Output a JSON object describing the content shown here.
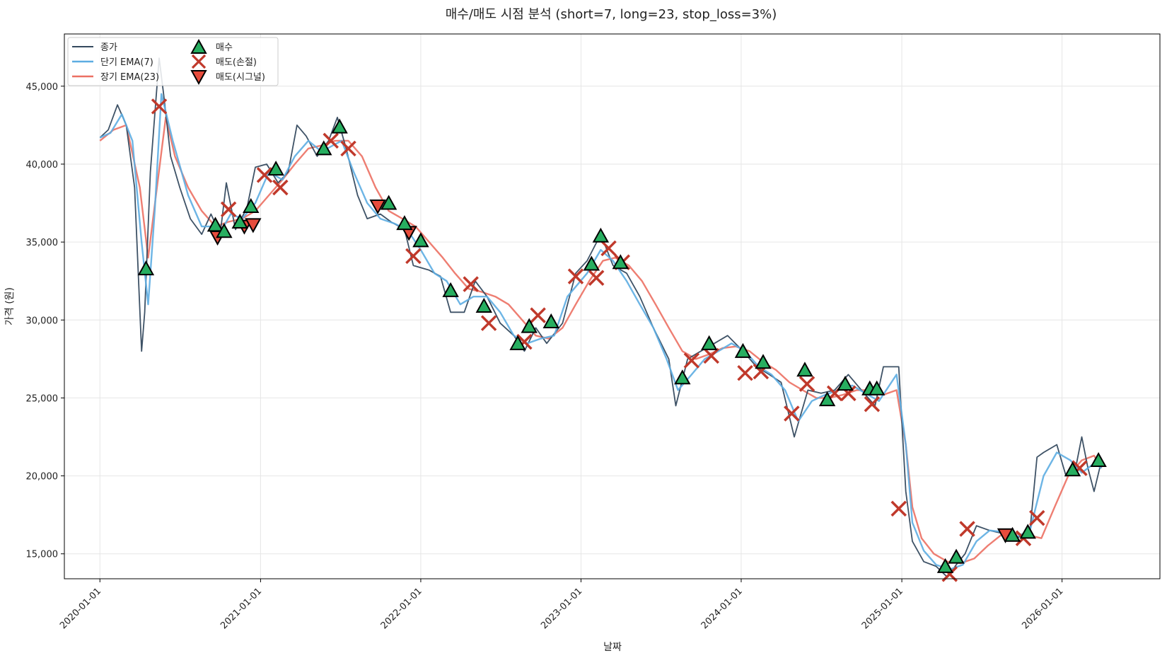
{
  "chart_data": {
    "type": "line",
    "title": "매수/매도 시점 분석 (short=7, long=23, stop_loss=3%)",
    "xlabel": "날짜",
    "ylabel": "가격 (원)",
    "xlim": [
      "2019-10-12",
      "2026-08-12"
    ],
    "ylim": [
      13400,
      48350
    ],
    "x_ticks": [
      "2020-01-01",
      "2021-01-01",
      "2022-01-01",
      "2023-01-01",
      "2024-01-01",
      "2025-01-01",
      "2026-01-01"
    ],
    "y_ticks": [
      15000,
      20000,
      25000,
      30000,
      35000,
      40000,
      45000
    ],
    "y_tick_labels": [
      "15,000",
      "20,000",
      "25,000",
      "30,000",
      "35,000",
      "40,000",
      "45,000"
    ],
    "grid": true,
    "legend_position": "top-left",
    "legend": {
      "close": "종가",
      "ema_short": "단기 EMA(7)",
      "ema_long": "장기 EMA(23)",
      "buy": "매수",
      "sell_stop": "매도(손절)",
      "sell_signal": "매도(시그널)"
    },
    "colors": {
      "close": "#34495e",
      "ema_short": "#5dade2",
      "ema_long": "#ec7063",
      "buy": "#27ae60",
      "sell_stop": "#c0392b",
      "sell_signal": "#e74c3c"
    },
    "series": [
      {
        "key": "close",
        "name": "종가",
        "x": [
          "2020-01-01",
          "2020-01-20",
          "2020-02-10",
          "2020-03-01",
          "2020-03-20",
          "2020-04-05",
          "2020-04-12",
          "2020-04-25",
          "2020-05-15",
          "2020-05-25",
          "2020-06-10",
          "2020-07-01",
          "2020-07-25",
          "2020-08-20",
          "2020-09-10",
          "2020-10-01",
          "2020-10-15",
          "2020-11-05",
          "2020-12-01",
          "2020-12-20",
          "2021-01-15",
          "2021-02-10",
          "2021-03-05",
          "2021-03-25",
          "2021-04-15",
          "2021-05-10",
          "2021-06-05",
          "2021-06-25",
          "2021-07-15",
          "2021-08-10",
          "2021-09-01",
          "2021-10-01",
          "2021-10-25",
          "2021-11-25",
          "2021-12-15",
          "2022-01-20",
          "2022-02-15",
          "2022-03-10",
          "2022-04-10",
          "2022-05-05",
          "2022-06-01",
          "2022-07-01",
          "2022-08-01",
          "2022-08-25",
          "2022-09-20",
          "2022-10-15",
          "2022-11-20",
          "2022-12-20",
          "2023-01-15",
          "2023-02-15",
          "2023-03-15",
          "2023-04-15",
          "2023-05-15",
          "2023-06-15",
          "2023-07-20",
          "2023-08-05",
          "2023-09-01",
          "2023-10-01",
          "2023-11-01",
          "2023-12-01",
          "2024-01-05",
          "2024-02-05",
          "2024-03-05",
          "2024-04-01",
          "2024-05-01",
          "2024-06-01",
          "2024-07-01",
          "2024-08-01",
          "2024-09-01",
          "2024-10-01",
          "2024-11-01",
          "2024-11-20",
          "2024-12-25",
          "2025-01-10",
          "2025-01-25",
          "2025-02-20",
          "2025-03-20",
          "2025-04-15",
          "2025-05-05",
          "2025-05-25",
          "2025-06-20",
          "2025-07-20",
          "2025-08-20",
          "2025-09-20",
          "2025-10-20",
          "2025-11-05",
          "2025-11-20",
          "2025-12-20",
          "2026-01-10",
          "2026-02-01",
          "2026-02-15",
          "2026-03-01",
          "2026-03-15",
          "2026-04-01"
        ],
        "values": [
          41700,
          42200,
          43800,
          42500,
          38500,
          28000,
          30500,
          39500,
          46800,
          44500,
          40500,
          38500,
          36500,
          35500,
          36800,
          35500,
          38800,
          35800,
          37200,
          39800,
          40000,
          38800,
          39500,
          42500,
          41800,
          40500,
          41500,
          43000,
          41000,
          38000,
          36500,
          36800,
          36300,
          35800,
          33500,
          33200,
          32800,
          30500,
          30500,
          32500,
          31500,
          29800,
          29000,
          28000,
          29500,
          28500,
          29800,
          33000,
          33800,
          35500,
          33500,
          33000,
          31500,
          29500,
          27500,
          24500,
          27500,
          28000,
          28500,
          29000,
          28000,
          27000,
          26500,
          26000,
          22500,
          25500,
          25300,
          25500,
          26500,
          25500,
          24500,
          27000,
          27000,
          19000,
          15800,
          14500,
          14200,
          13500,
          14300,
          15000,
          16800,
          16500,
          16300,
          16000,
          16500,
          21200,
          21500,
          22000,
          20000,
          20500,
          22500,
          20500,
          19000,
          21000
        ]
      },
      {
        "key": "ema_short",
        "name": "단기 EMA(7)",
        "x": [
          "2020-01-01",
          "2020-01-25",
          "2020-02-20",
          "2020-03-15",
          "2020-04-05",
          "2020-04-20",
          "2020-05-05",
          "2020-05-20",
          "2020-06-15",
          "2020-07-20",
          "2020-08-20",
          "2020-09-15",
          "2020-10-05",
          "2020-10-25",
          "2020-11-20",
          "2020-12-20",
          "2021-01-20",
          "2021-02-20",
          "2021-03-20",
          "2021-04-20",
          "2021-05-20",
          "2021-06-15",
          "2021-07-05",
          "2021-08-01",
          "2021-09-01",
          "2021-10-01",
          "2021-11-01",
          "2021-12-01",
          "2022-01-01",
          "2022-02-01",
          "2022-03-01",
          "2022-04-01",
          "2022-05-01",
          "2022-06-01",
          "2022-07-01",
          "2022-08-01",
          "2022-09-01",
          "2022-10-01",
          "2022-11-01",
          "2022-12-01",
          "2023-01-15",
          "2023-02-15",
          "2023-03-15",
          "2023-04-15",
          "2023-05-15",
          "2023-06-15",
          "2023-07-15",
          "2023-08-10",
          "2023-09-10",
          "2023-10-10",
          "2023-11-10",
          "2023-12-10",
          "2024-01-10",
          "2024-02-10",
          "2024-03-10",
          "2024-04-10",
          "2024-05-10",
          "2024-06-10",
          "2024-07-10",
          "2024-08-10",
          "2024-09-10",
          "2024-10-10",
          "2024-11-10",
          "2024-12-20",
          "2025-01-10",
          "2025-01-25",
          "2025-02-20",
          "2025-03-20",
          "2025-04-20",
          "2025-05-20",
          "2025-06-20",
          "2025-07-20",
          "2025-08-20",
          "2025-09-20",
          "2025-10-20",
          "2025-11-20",
          "2025-12-20",
          "2026-01-20",
          "2026-02-15",
          "2026-03-15",
          "2026-04-01"
        ],
        "values": [
          41700,
          42000,
          43200,
          41500,
          35000,
          31000,
          37000,
          44500,
          41500,
          38000,
          36000,
          36000,
          35800,
          36800,
          36500,
          37500,
          39500,
          39000,
          40500,
          41500,
          40800,
          41200,
          41500,
          39500,
          37500,
          36500,
          36200,
          35800,
          34500,
          33000,
          32500,
          31000,
          31500,
          31500,
          30500,
          29000,
          28500,
          28800,
          29000,
          31500,
          33000,
          34500,
          33800,
          32500,
          31000,
          29500,
          27500,
          25500,
          26500,
          27500,
          28000,
          28500,
          28000,
          27000,
          26500,
          25500,
          23500,
          24800,
          25200,
          25500,
          25800,
          25300,
          24800,
          26500,
          22000,
          17000,
          15200,
          14300,
          14000,
          14300,
          15800,
          16500,
          16400,
          16100,
          16500,
          20000,
          21500,
          21000,
          20200,
          20800,
          20500
        ]
      },
      {
        "key": "ema_long",
        "name": "장기 EMA(23)",
        "x": [
          "2020-01-01",
          "2020-02-01",
          "2020-03-01",
          "2020-04-01",
          "2020-04-20",
          "2020-05-10",
          "2020-05-30",
          "2020-06-20",
          "2020-07-20",
          "2020-08-20",
          "2020-09-20",
          "2020-10-20",
          "2020-11-20",
          "2020-12-20",
          "2021-01-20",
          "2021-02-20",
          "2021-03-20",
          "2021-04-20",
          "2021-05-20",
          "2021-06-20",
          "2021-07-20",
          "2021-08-20",
          "2021-09-20",
          "2021-10-20",
          "2021-11-20",
          "2021-12-20",
          "2022-01-20",
          "2022-02-20",
          "2022-03-20",
          "2022-04-20",
          "2022-05-20",
          "2022-06-20",
          "2022-07-20",
          "2022-08-20",
          "2022-09-20",
          "2022-10-20",
          "2022-11-20",
          "2022-12-20",
          "2023-01-20",
          "2023-02-20",
          "2023-03-20",
          "2023-04-20",
          "2023-05-20",
          "2023-06-20",
          "2023-07-20",
          "2023-08-20",
          "2023-09-20",
          "2023-10-20",
          "2023-11-20",
          "2023-12-20",
          "2024-01-20",
          "2024-02-20",
          "2024-03-20",
          "2024-04-20",
          "2024-05-20",
          "2024-06-20",
          "2024-07-20",
          "2024-08-20",
          "2024-09-20",
          "2024-10-20",
          "2024-11-20",
          "2024-12-20",
          "2025-01-10",
          "2025-01-25",
          "2025-02-15",
          "2025-03-15",
          "2025-04-15",
          "2025-05-15",
          "2025-06-15",
          "2025-07-15",
          "2025-08-15",
          "2025-09-15",
          "2025-10-15",
          "2025-11-15",
          "2025-12-15",
          "2026-01-15",
          "2026-02-15",
          "2026-03-15",
          "2026-04-01"
        ],
        "values": [
          41500,
          42200,
          42500,
          38500,
          34000,
          38500,
          43000,
          40500,
          38500,
          37000,
          36000,
          36300,
          36500,
          37000,
          38000,
          39000,
          40000,
          41000,
          41200,
          41500,
          41500,
          40500,
          38500,
          37000,
          36500,
          36000,
          35000,
          34000,
          33000,
          32000,
          31800,
          31500,
          31000,
          30000,
          29000,
          28800,
          29500,
          31000,
          32500,
          33800,
          34000,
          33500,
          32500,
          31000,
          29500,
          28000,
          27500,
          27800,
          28200,
          28300,
          28000,
          27300,
          26800,
          26000,
          25500,
          25000,
          25000,
          25200,
          25500,
          25500,
          25200,
          25500,
          22000,
          18000,
          16000,
          15000,
          14500,
          14400,
          14700,
          15500,
          16200,
          16300,
          16200,
          16000,
          18000,
          20000,
          21000,
          21300,
          20500
        ]
      }
    ],
    "events": {
      "buy": [
        {
          "x": "2020-04-15",
          "y": 33300
        },
        {
          "x": "2020-09-20",
          "y": 36100
        },
        {
          "x": "2020-10-10",
          "y": 35700
        },
        {
          "x": "2020-11-15",
          "y": 36300
        },
        {
          "x": "2020-12-10",
          "y": 37300
        },
        {
          "x": "2021-02-05",
          "y": 39700
        },
        {
          "x": "2021-05-25",
          "y": 41000
        },
        {
          "x": "2021-06-30",
          "y": 42400
        },
        {
          "x": "2021-10-20",
          "y": 37500
        },
        {
          "x": "2021-11-25",
          "y": 36200
        },
        {
          "x": "2022-01-01",
          "y": 35100
        },
        {
          "x": "2022-03-10",
          "y": 31900
        },
        {
          "x": "2022-05-25",
          "y": 30900
        },
        {
          "x": "2022-08-10",
          "y": 28500
        },
        {
          "x": "2022-09-05",
          "y": 29600
        },
        {
          "x": "2022-10-25",
          "y": 29900
        },
        {
          "x": "2023-01-25",
          "y": 33600
        },
        {
          "x": "2023-02-15",
          "y": 35400
        },
        {
          "x": "2023-04-01",
          "y": 33700
        },
        {
          "x": "2023-08-20",
          "y": 26300
        },
        {
          "x": "2023-10-20",
          "y": 28500
        },
        {
          "x": "2024-01-05",
          "y": 28000
        },
        {
          "x": "2024-02-20",
          "y": 27300
        },
        {
          "x": "2024-05-25",
          "y": 26800
        },
        {
          "x": "2024-07-15",
          "y": 24900
        },
        {
          "x": "2024-08-25",
          "y": 25900
        },
        {
          "x": "2024-10-20",
          "y": 25600
        },
        {
          "x": "2024-11-05",
          "y": 25600
        },
        {
          "x": "2025-04-10",
          "y": 14200
        },
        {
          "x": "2025-05-05",
          "y": 14800
        },
        {
          "x": "2025-09-10",
          "y": 16200
        },
        {
          "x": "2025-10-15",
          "y": 16400
        },
        {
          "x": "2026-01-25",
          "y": 20400
        },
        {
          "x": "2026-03-25",
          "y": 21000
        }
      ],
      "sell_stop": [
        {
          "x": "2020-05-15",
          "y": 43700
        },
        {
          "x": "2020-10-20",
          "y": 37100
        },
        {
          "x": "2021-01-10",
          "y": 39300
        },
        {
          "x": "2021-02-15",
          "y": 38500
        },
        {
          "x": "2021-06-10",
          "y": 41500
        },
        {
          "x": "2021-07-20",
          "y": 41000
        },
        {
          "x": "2021-12-15",
          "y": 34100
        },
        {
          "x": "2022-04-25",
          "y": 32300
        },
        {
          "x": "2022-06-05",
          "y": 29800
        },
        {
          "x": "2022-08-25",
          "y": 28600
        },
        {
          "x": "2022-09-25",
          "y": 30300
        },
        {
          "x": "2022-12-20",
          "y": 32800
        },
        {
          "x": "2023-02-05",
          "y": 32700
        },
        {
          "x": "2023-03-05",
          "y": 34600
        },
        {
          "x": "2023-04-05",
          "y": 33700
        },
        {
          "x": "2023-09-10",
          "y": 27400
        },
        {
          "x": "2023-10-25",
          "y": 27700
        },
        {
          "x": "2024-01-10",
          "y": 26600
        },
        {
          "x": "2024-02-15",
          "y": 26700
        },
        {
          "x": "2024-04-25",
          "y": 24000
        },
        {
          "x": "2024-05-30",
          "y": 25900
        },
        {
          "x": "2024-08-01",
          "y": 25300
        },
        {
          "x": "2024-09-01",
          "y": 25300
        },
        {
          "x": "2024-10-25",
          "y": 24600
        },
        {
          "x": "2024-12-25",
          "y": 17900
        },
        {
          "x": "2025-04-20",
          "y": 13700
        },
        {
          "x": "2025-05-30",
          "y": 16600
        },
        {
          "x": "2025-10-05",
          "y": 16000
        },
        {
          "x": "2025-11-05",
          "y": 17300
        },
        {
          "x": "2026-02-10",
          "y": 20500
        }
      ],
      "sell_signal": [
        {
          "x": "2020-09-25",
          "y": 35300
        },
        {
          "x": "2020-11-25",
          "y": 36000
        },
        {
          "x": "2020-12-15",
          "y": 36100
        },
        {
          "x": "2021-09-25",
          "y": 37300
        },
        {
          "x": "2021-12-05",
          "y": 35600
        },
        {
          "x": "2025-08-25",
          "y": 16200
        }
      ]
    }
  }
}
